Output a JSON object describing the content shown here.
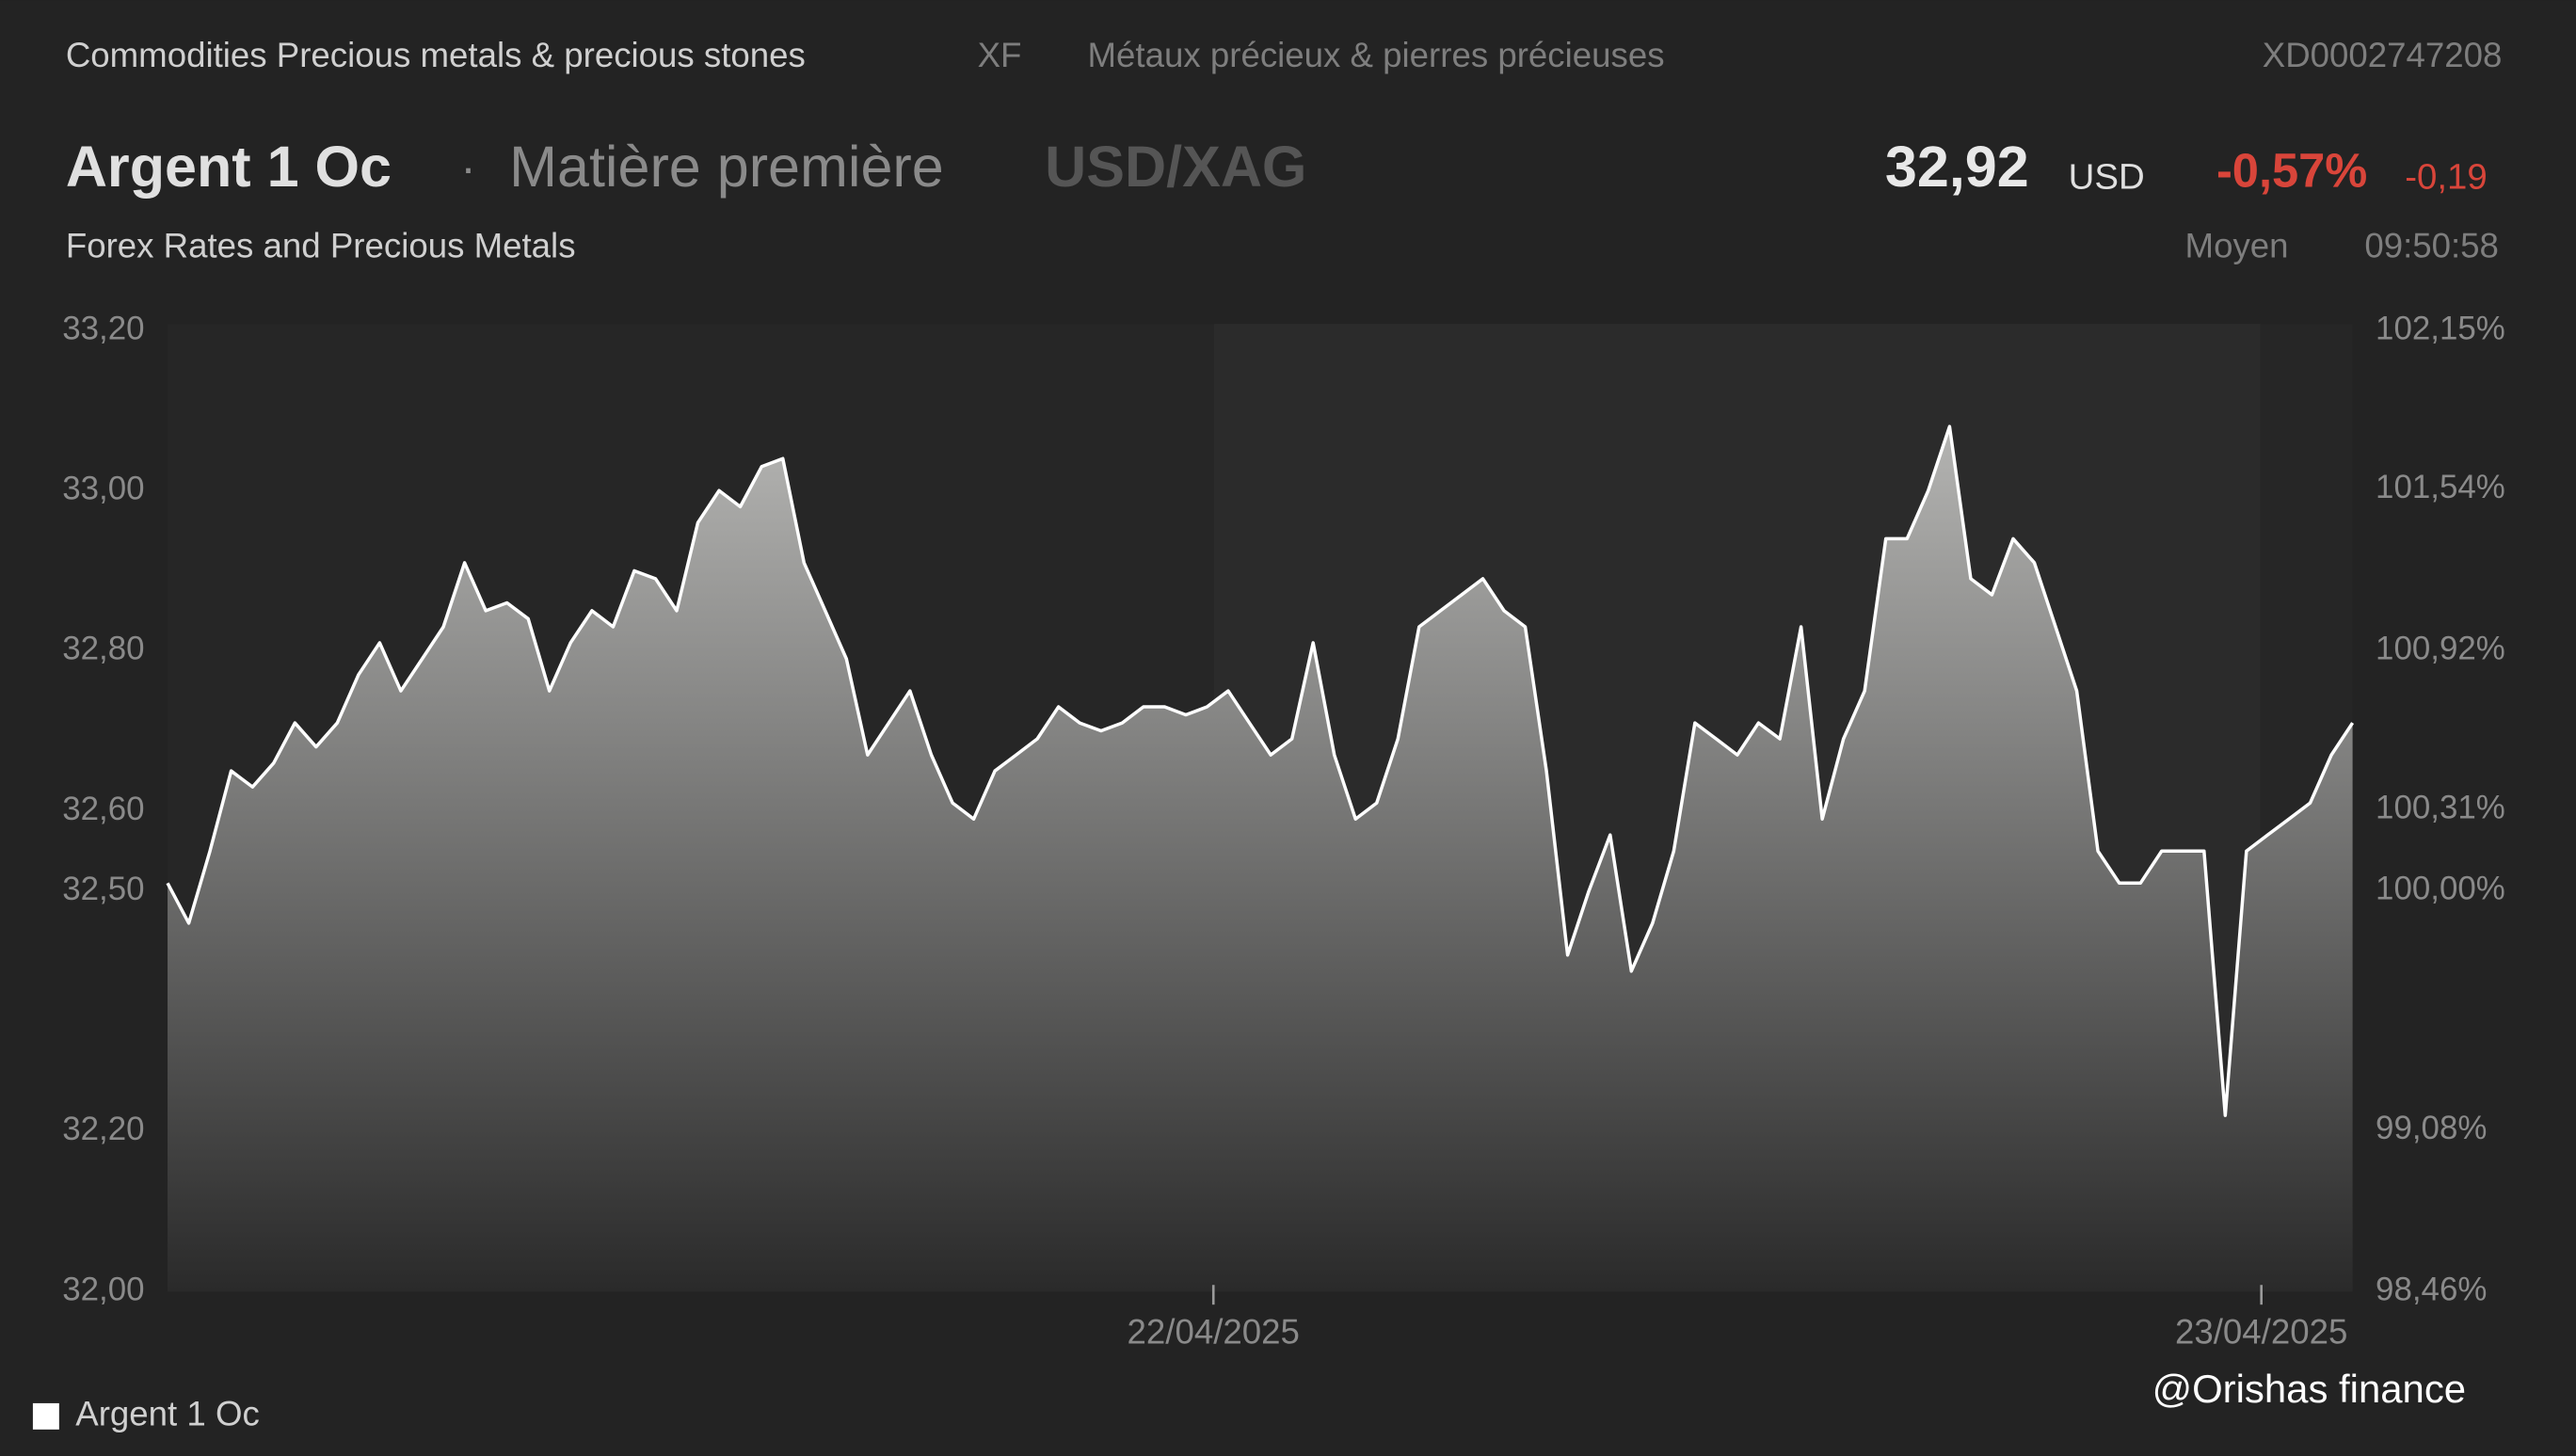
{
  "header": {
    "breadcrumb": "Commodities Precious metals & precious stones",
    "exchange": "XF",
    "category_fr": "Métaux précieux & pierres précieuses",
    "isin": "XD0002747208",
    "name": "Argent 1 Oc",
    "separator": "·",
    "asset_type": "Matière première",
    "pair": "USD/XAG",
    "price": "32,92",
    "currency": "USD",
    "change_pct": "-0,57%",
    "change_abs": "-0,19",
    "subtitle": "Forex Rates and Precious Metals",
    "price_kind": "Moyen",
    "time": "09:50:58"
  },
  "watermark": "@Orishas finance",
  "chart_data": {
    "type": "area",
    "series": [
      {
        "name": "Argent 1 Oc",
        "color": "#ffffff",
        "values": [
          32.51,
          32.46,
          32.55,
          32.65,
          32.63,
          32.66,
          32.71,
          32.68,
          32.71,
          32.77,
          32.81,
          32.75,
          32.79,
          32.83,
          32.91,
          32.85,
          32.86,
          32.84,
          32.75,
          32.81,
          32.85,
          32.83,
          32.9,
          32.89,
          32.85,
          32.96,
          33.0,
          32.98,
          33.03,
          33.04,
          32.91,
          32.85,
          32.79,
          32.67,
          32.71,
          32.75,
          32.67,
          32.61,
          32.59,
          32.65,
          32.67,
          32.69,
          32.73,
          32.71,
          32.7,
          32.71,
          32.73,
          32.73,
          32.72,
          32.73,
          32.75,
          32.71,
          32.67,
          32.69,
          32.81,
          32.67,
          32.59,
          32.61,
          32.69,
          32.83,
          32.85,
          32.87,
          32.89,
          32.85,
          32.83,
          32.65,
          32.42,
          32.5,
          32.57,
          32.4,
          32.46,
          32.55,
          32.71,
          32.69,
          32.67,
          32.71,
          32.69,
          32.83,
          32.59,
          32.69,
          32.75,
          32.94,
          32.94,
          33.0,
          33.08,
          32.89,
          32.87,
          32.94,
          32.91,
          32.83,
          32.75,
          32.55,
          32.51,
          32.51,
          32.55,
          32.55,
          32.55,
          32.22,
          32.55,
          32.57,
          32.59,
          32.61,
          32.67,
          32.71
        ]
      }
    ],
    "xlim": [
      0,
      103
    ],
    "xticks": [
      {
        "value": 49.3,
        "label": "22/04/2025"
      },
      {
        "value": 98.7,
        "label": "23/04/2025"
      }
    ],
    "ylim": [
      32.0,
      33.2
    ],
    "yticks": [
      {
        "value": 32.0,
        "label": "32,00"
      },
      {
        "value": 32.2,
        "label": "32,20"
      },
      {
        "value": 32.5,
        "label": "32,50"
      },
      {
        "value": 32.6,
        "label": "32,60"
      },
      {
        "value": 32.8,
        "label": "32,80"
      },
      {
        "value": 33.0,
        "label": "33,00"
      },
      {
        "value": 33.2,
        "label": "33,20"
      }
    ],
    "y2lim": [
      98.46,
      102.15
    ],
    "y2ticks": [
      {
        "value": 98.46,
        "label": "98,46%"
      },
      {
        "value": 99.08,
        "label": "99,08%"
      },
      {
        "value": 100.0,
        "label": "100,00%"
      },
      {
        "value": 100.31,
        "label": "100,31%"
      },
      {
        "value": 100.92,
        "label": "100,92%"
      },
      {
        "value": 101.54,
        "label": "101,54%"
      },
      {
        "value": 102.15,
        "label": "102,15%"
      }
    ],
    "legend": "bottom-left"
  }
}
